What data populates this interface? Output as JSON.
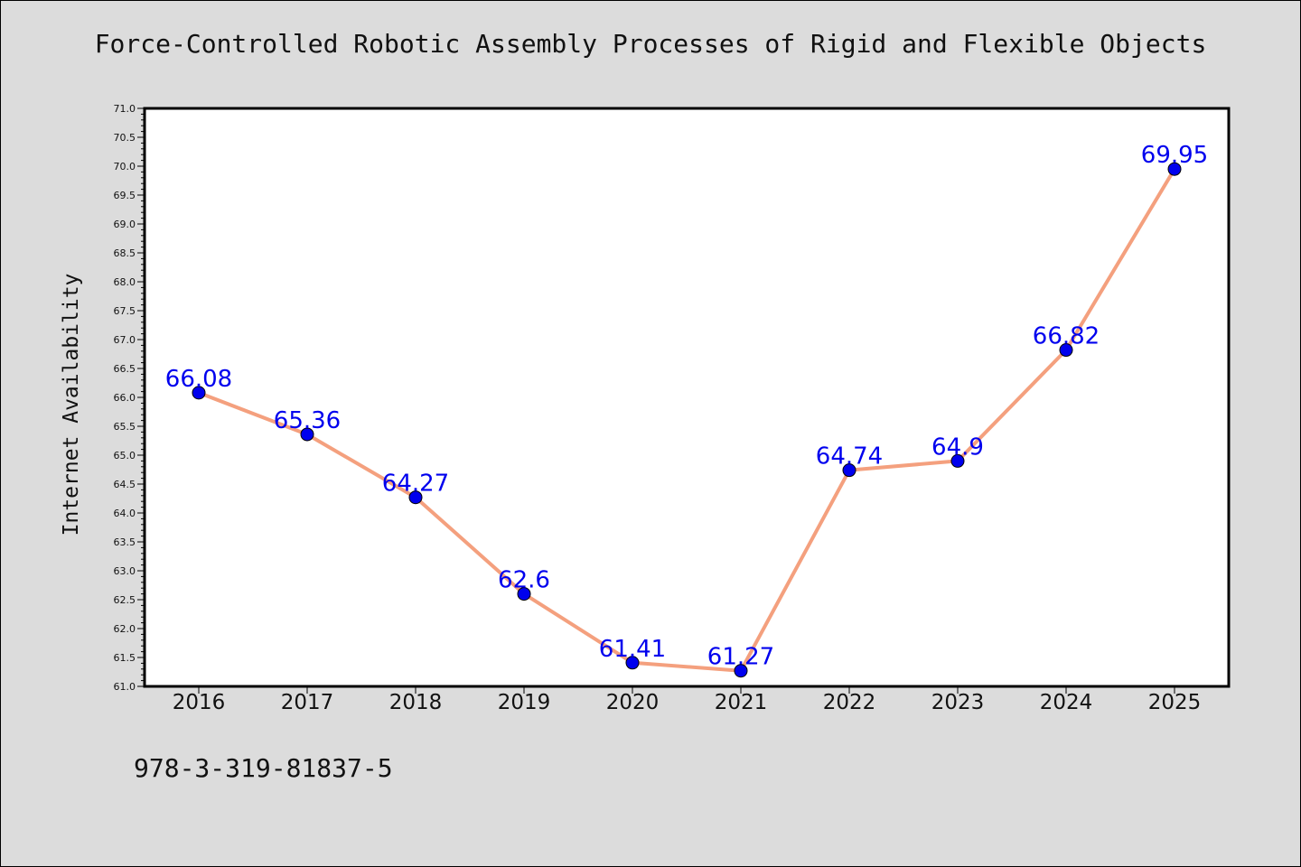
{
  "title": "Force-Controlled Robotic Assembly Processes of Rigid and Flexible Objects",
  "footer": "978-3-319-81837-5",
  "chart_data": {
    "type": "line",
    "title": "Force-Controlled Robotic Assembly Processes of Rigid and Flexible Objects",
    "xlabel": "",
    "ylabel": "Internet Availability",
    "categories": [
      "2016",
      "2017",
      "2018",
      "2019",
      "2020",
      "2021",
      "2022",
      "2023",
      "2024",
      "2025"
    ],
    "values": [
      66.08,
      65.36,
      64.27,
      62.6,
      61.41,
      61.27,
      64.74,
      64.9,
      66.82,
      69.95
    ],
    "data_labels": [
      "66.08",
      "65.36",
      "64.27",
      "62.6",
      "61.41",
      "61.27",
      "64.74",
      "64.9",
      "66.82",
      "69.95"
    ],
    "ylim": [
      61.0,
      71.0
    ],
    "yticks": [
      "61.0",
      "61.5",
      "62.0",
      "62.5",
      "63.0",
      "63.5",
      "64.0",
      "64.5",
      "65.0",
      "65.5",
      "66.0",
      "66.5",
      "67.0",
      "67.5",
      "68.0",
      "68.5",
      "69.0",
      "69.5",
      "70.0",
      "70.5",
      "71.0"
    ],
    "grid": false,
    "legend": "none",
    "line_color": "#f4a07e",
    "marker_color": "#0000ee",
    "label_color": "#0000ee",
    "background": "#dcdcdc",
    "plot_background": "#ffffff"
  }
}
